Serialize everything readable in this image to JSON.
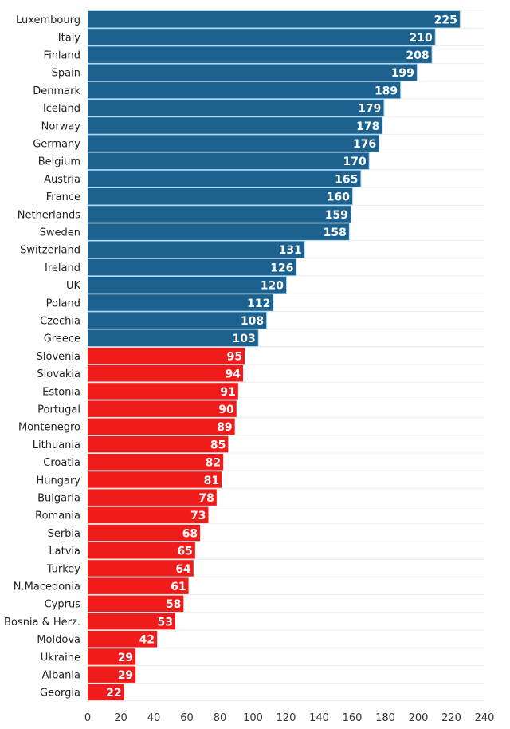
{
  "chart_data": {
    "type": "bar",
    "orientation": "horizontal",
    "title": "",
    "xlabel": "",
    "ylabel": "",
    "xlim": [
      0,
      240
    ],
    "xticks": [
      0,
      20,
      40,
      60,
      80,
      100,
      120,
      140,
      160,
      180,
      200,
      220,
      240
    ],
    "grid": true,
    "threshold": 100,
    "colors": {
      "above": "#1d628f",
      "below": "#f01c1c",
      "separator_above": "#a9d8f2"
    },
    "categories": [
      "Luxembourg",
      "Italy",
      "Finland",
      "Spain",
      "Denmark",
      "Iceland",
      "Norway",
      "Germany",
      "Belgium",
      "Austria",
      "France",
      "Netherlands",
      "Sweden",
      "Switzerland",
      "Ireland",
      "UK",
      "Poland",
      "Czechia",
      "Greece",
      "Slovenia",
      "Slovakia",
      "Estonia",
      "Portugal",
      "Montenegro",
      "Lithuania",
      "Croatia",
      "Hungary",
      "Bulgaria",
      "Romania",
      "Serbia",
      "Latvia",
      "Turkey",
      "N.Macedonia",
      "Cyprus",
      "Bosnia & Herz.",
      "Moldova",
      "Ukraine",
      "Albania",
      "Georgia"
    ],
    "values": [
      225,
      210,
      208,
      199,
      189,
      179,
      178,
      176,
      170,
      165,
      160,
      159,
      158,
      131,
      126,
      120,
      112,
      108,
      103,
      95,
      94,
      91,
      90,
      89,
      85,
      82,
      81,
      78,
      73,
      68,
      65,
      64,
      61,
      58,
      53,
      42,
      29,
      29,
      22
    ]
  }
}
